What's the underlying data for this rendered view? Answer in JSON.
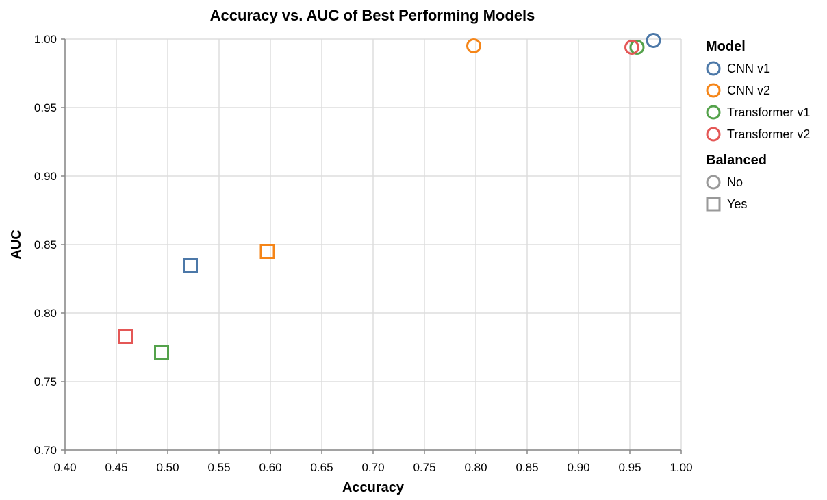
{
  "chart_data": {
    "type": "scatter",
    "title": "Accuracy vs. AUC of Best Performing Models",
    "xlabel": "Accuracy",
    "ylabel": "AUC",
    "xlim": [
      0.4,
      1.0
    ],
    "ylim": [
      0.7,
      1.0
    ],
    "x_ticks": [
      "0.40",
      "0.45",
      "0.50",
      "0.55",
      "0.60",
      "0.65",
      "0.70",
      "0.75",
      "0.80",
      "0.85",
      "0.90",
      "0.95",
      "1.00"
    ],
    "y_ticks": [
      "0.70",
      "0.75",
      "0.80",
      "0.85",
      "0.90",
      "0.95",
      "1.00"
    ],
    "grid": true,
    "legend_placement": "right",
    "legends": [
      {
        "title": "Model",
        "entries": [
          {
            "label": "CNN v1",
            "color": "#4c78a8"
          },
          {
            "label": "CNN v2",
            "color": "#f58518"
          },
          {
            "label": "Transformer v1",
            "color": "#54a24b"
          },
          {
            "label": "Transformer v2",
            "color": "#e45756"
          }
        ]
      },
      {
        "title": "Balanced",
        "entries": [
          {
            "label": "No",
            "shape": "circle",
            "color": "#999999"
          },
          {
            "label": "Yes",
            "shape": "square",
            "color": "#999999"
          }
        ]
      }
    ],
    "series": [
      {
        "name": "CNN v1",
        "color": "#4c78a8",
        "points": [
          {
            "x": 0.973,
            "y": 0.999,
            "balanced": "No"
          },
          {
            "x": 0.522,
            "y": 0.835,
            "balanced": "Yes"
          }
        ]
      },
      {
        "name": "CNN v2",
        "color": "#f58518",
        "points": [
          {
            "x": 0.798,
            "y": 0.995,
            "balanced": "No"
          },
          {
            "x": 0.597,
            "y": 0.845,
            "balanced": "Yes"
          }
        ]
      },
      {
        "name": "Transformer v1",
        "color": "#54a24b",
        "points": [
          {
            "x": 0.957,
            "y": 0.994,
            "balanced": "No"
          },
          {
            "x": 0.494,
            "y": 0.771,
            "balanced": "Yes"
          }
        ]
      },
      {
        "name": "Transformer v2",
        "color": "#e45756",
        "points": [
          {
            "x": 0.952,
            "y": 0.994,
            "balanced": "No"
          },
          {
            "x": 0.459,
            "y": 0.783,
            "balanced": "Yes"
          }
        ]
      }
    ]
  }
}
